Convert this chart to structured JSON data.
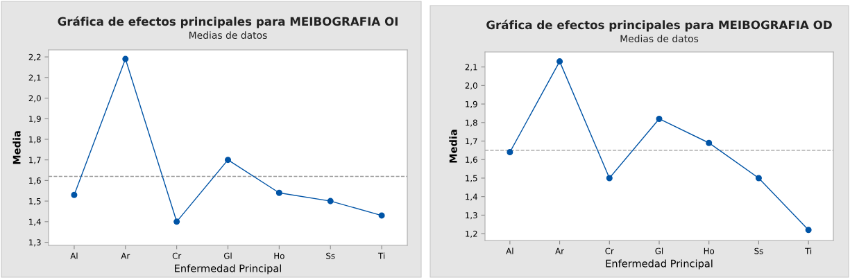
{
  "chart_data": [
    {
      "type": "line",
      "title": "Gráfica de efectos principales para MEIBOGRAFIA OI",
      "subtitle": "Medias de datos",
      "xlabel": "Enfermedad Principal",
      "ylabel": "Media",
      "categories": [
        "Al",
        "Ar",
        "Cr",
        "Gl",
        "Ho",
        "Ss",
        "Ti"
      ],
      "series": [
        {
          "color": "#0054a6",
          "values": [
            1.53,
            2.19,
            1.4,
            1.7,
            1.54,
            1.5,
            1.43
          ]
        }
      ],
      "ylim": [
        1.285,
        2.234
      ],
      "yticks": [
        {
          "value": 1.3,
          "label": "1,3"
        },
        {
          "value": 1.4,
          "label": "1,4"
        },
        {
          "value": 1.5,
          "label": "1,5"
        },
        {
          "value": 1.6,
          "label": "1,6"
        },
        {
          "value": 1.7,
          "label": "1,7"
        },
        {
          "value": 1.8,
          "label": "1,8"
        },
        {
          "value": 1.9,
          "label": "1,9"
        },
        {
          "value": 2.0,
          "label": "2,0"
        },
        {
          "value": 2.1,
          "label": "2,1"
        },
        {
          "value": 2.2,
          "label": "2,2"
        }
      ],
      "ref_lines": [
        {
          "axis": "y",
          "value": 1.62,
          "color": "#999999",
          "line_style": "dashed"
        }
      ],
      "marker": "circle",
      "line_style": "solid"
    },
    {
      "type": "line",
      "title": "Gráfica de efectos principales para MEIBOGRAFIA OD",
      "subtitle": "Medias de datos",
      "xlabel": "Enfermedad Principal",
      "ylabel": "Media",
      "categories": [
        "Al",
        "Ar",
        "Cr",
        "Gl",
        "Ho",
        "Ss",
        "Ti"
      ],
      "series": [
        {
          "color": "#0054a6",
          "values": [
            1.64,
            2.13,
            1.5,
            1.82,
            1.69,
            1.5,
            1.22
          ]
        }
      ],
      "ylim": [
        1.163,
        2.181
      ],
      "yticks": [
        {
          "value": 1.2,
          "label": "1,2"
        },
        {
          "value": 1.3,
          "label": "1,3"
        },
        {
          "value": 1.4,
          "label": "1,4"
        },
        {
          "value": 1.5,
          "label": "1,5"
        },
        {
          "value": 1.6,
          "label": "1,6"
        },
        {
          "value": 1.7,
          "label": "1,7"
        },
        {
          "value": 1.8,
          "label": "1,8"
        },
        {
          "value": 1.9,
          "label": "1,9"
        },
        {
          "value": 2.0,
          "label": "2,0"
        },
        {
          "value": 2.1,
          "label": "2,1"
        }
      ],
      "ref_lines": [
        {
          "axis": "y",
          "value": 1.65,
          "color": "#999999",
          "line_style": "dashed"
        }
      ],
      "marker": "circle",
      "line_style": "solid"
    }
  ]
}
